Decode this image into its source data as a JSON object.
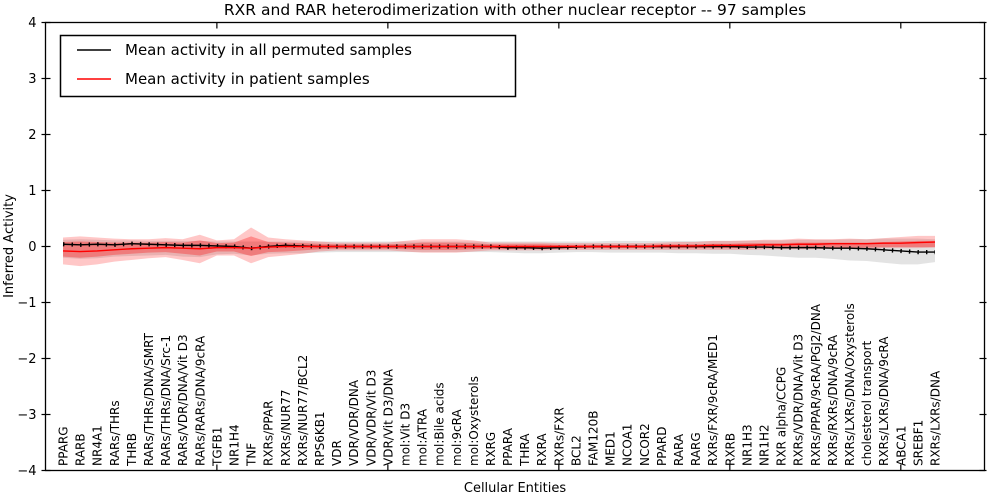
{
  "chart_data": {
    "type": "line",
    "title": "RXR and RAR heterodimerization with other nuclear receptor -- 97 samples",
    "xlabel": "Cellular Entities",
    "ylabel": "Inferred Activity",
    "ylim": [
      -4,
      4
    ],
    "yticks": [
      -4,
      -3,
      -2,
      -1,
      0,
      1,
      2,
      3,
      4
    ],
    "x_major_tick_positions": [
      10,
      20,
      30,
      40,
      50
    ],
    "legend_position": "upper left",
    "grid": false,
    "categories": [
      "PPARG",
      "RARB",
      "NR4A1",
      "RARs/THRs",
      "THRB",
      "RARs/THRs/DNA/SMRT",
      "RARs/THRs/DNA/Src-1",
      "RARs/VDR/DNA/Vit D3",
      "RARs/RARs/DNA/9cRA",
      "TGFB1",
      "NR1H4",
      "TNF",
      "RXRs/PPAR",
      "RXRs/NUR77",
      "RXRs/NUR77/BCL2",
      "RPS6KB1",
      "VDR",
      "VDR/VDR/DNA",
      "VDR/VDR/Vit D3",
      "VDR/Vit D3/DNA",
      "mol:Vit D3",
      "mol:ATRA",
      "mol:Bile acids",
      "mol:9cRA",
      "mol:Oxysterols",
      "RXRG",
      "PPARA",
      "THRA",
      "RXRA",
      "RXRs/FXR",
      "BCL2",
      "FAM120B",
      "MED1",
      "NCOA1",
      "NCOR2",
      "PPARD",
      "RARA",
      "RARG",
      "RXRs/FXR/9cRA/MED1",
      "RXRB",
      "NR1H3",
      "NR1H2",
      "RXR alpha/CCPG",
      "RXRs/VDR/DNA/Vit D3",
      "RXRs/PPAR/9cRA/PGJ2/DNA",
      "RXRs/RXRs/DNA/9cRA",
      "RXRs/LXRs/DNA/Oxysterols",
      "cholesterol transport",
      "RXRs/LXRs/DNA/9cRA",
      "ABCA1",
      "SREBF1",
      "RXRs/LXRs/DNA"
    ],
    "series": [
      {
        "name": "Mean activity in all permuted samples",
        "color": "#000000",
        "markers": "tick",
        "values": [
          0.04,
          0.03,
          0.04,
          0.03,
          0.05,
          0.04,
          0.03,
          0.02,
          0.02,
          0.01,
          0.0,
          -0.03,
          0.0,
          0.02,
          0.01,
          0.0,
          0.0,
          0.0,
          0.0,
          0.0,
          0.0,
          0.0,
          0.0,
          0.0,
          0.0,
          0.0,
          -0.02,
          -0.02,
          -0.03,
          -0.02,
          -0.01,
          0.0,
          0.0,
          0.0,
          0.0,
          0.0,
          0.0,
          0.0,
          0.0,
          0.0,
          -0.01,
          -0.01,
          -0.02,
          -0.02,
          -0.02,
          -0.03,
          -0.03,
          -0.04,
          -0.06,
          -0.08,
          -0.1,
          -0.1
        ]
      },
      {
        "name": "Mean activity in patient samples",
        "color": "#ff0000",
        "markers": "none",
        "values": [
          -0.08,
          -0.09,
          -0.08,
          -0.06,
          -0.04,
          -0.03,
          -0.02,
          -0.03,
          -0.04,
          -0.02,
          -0.02,
          -0.03,
          -0.01,
          0.0,
          0.0,
          0.0,
          0.0,
          0.0,
          0.0,
          0.0,
          0.0,
          0.0,
          0.0,
          0.0,
          0.0,
          0.0,
          0.0,
          0.0,
          0.0,
          0.0,
          0.0,
          0.0,
          0.0,
          0.0,
          0.0,
          0.01,
          0.01,
          0.01,
          0.02,
          0.02,
          0.02,
          0.03,
          0.03,
          0.04,
          0.04,
          0.05,
          0.05,
          0.05,
          0.06,
          0.06,
          0.07,
          0.08
        ]
      }
    ],
    "bands": [
      {
        "name": "permuted-samples-range",
        "color": "#000000",
        "opacity": 0.11,
        "upper": [
          0.12,
          0.13,
          0.12,
          0.11,
          0.11,
          0.1,
          0.1,
          0.1,
          0.1,
          0.09,
          0.09,
          0.09,
          0.09,
          0.09,
          0.09,
          0.09,
          0.09,
          0.09,
          0.09,
          0.09,
          0.09,
          0.09,
          0.09,
          0.09,
          0.09,
          0.09,
          0.09,
          0.09,
          0.09,
          0.09,
          0.09,
          0.09,
          0.1,
          0.1,
          0.1,
          0.1,
          0.1,
          0.1,
          0.1,
          0.1,
          0.1,
          0.11,
          0.11,
          0.12,
          0.12,
          0.12,
          0.13,
          0.13,
          0.14,
          0.14,
          0.14,
          0.13
        ],
        "lower": [
          -0.2,
          -0.22,
          -0.21,
          -0.18,
          -0.17,
          -0.16,
          -0.15,
          -0.18,
          -0.19,
          -0.14,
          -0.13,
          -0.16,
          -0.13,
          -0.12,
          -0.12,
          -0.11,
          -0.1,
          -0.1,
          -0.1,
          -0.1,
          -0.1,
          -0.1,
          -0.1,
          -0.1,
          -0.1,
          -0.1,
          -0.11,
          -0.12,
          -0.12,
          -0.11,
          -0.1,
          -0.1,
          -0.11,
          -0.11,
          -0.11,
          -0.11,
          -0.12,
          -0.12,
          -0.13,
          -0.13,
          -0.15,
          -0.16,
          -0.18,
          -0.2,
          -0.2,
          -0.22,
          -0.25,
          -0.26,
          -0.29,
          -0.32,
          -0.32,
          -0.28
        ]
      },
      {
        "name": "patient-samples-outer-range",
        "color": "#ff0000",
        "opacity": 0.22,
        "upper": [
          0.16,
          0.18,
          0.16,
          0.14,
          0.13,
          0.13,
          0.15,
          0.13,
          0.21,
          0.11,
          0.13,
          0.34,
          0.16,
          0.13,
          0.11,
          0.09,
          0.07,
          0.07,
          0.07,
          0.07,
          0.1,
          0.13,
          0.13,
          0.13,
          0.11,
          0.07,
          0.07,
          0.07,
          0.07,
          0.06,
          0.06,
          0.06,
          0.06,
          0.06,
          0.06,
          0.07,
          0.08,
          0.08,
          0.1,
          0.1,
          0.11,
          0.12,
          0.12,
          0.14,
          0.13,
          0.13,
          0.14,
          0.13,
          0.15,
          0.17,
          0.19,
          0.19
        ],
        "lower": [
          -0.32,
          -0.35,
          -0.32,
          -0.27,
          -0.24,
          -0.21,
          -0.19,
          -0.24,
          -0.3,
          -0.16,
          -0.16,
          -0.3,
          -0.19,
          -0.16,
          -0.13,
          -0.09,
          -0.07,
          -0.07,
          -0.07,
          -0.07,
          -0.09,
          -0.11,
          -0.11,
          -0.11,
          -0.09,
          -0.07,
          -0.07,
          -0.07,
          -0.07,
          -0.06,
          -0.06,
          -0.06,
          -0.06,
          -0.06,
          -0.06,
          -0.06,
          -0.06,
          -0.06,
          -0.06,
          -0.06,
          -0.06,
          -0.05,
          -0.05,
          -0.05,
          -0.05,
          -0.04,
          -0.04,
          -0.04,
          -0.03,
          -0.03,
          -0.03,
          -0.02
        ]
      },
      {
        "name": "patient-samples-inner-range",
        "color": "#ff0000",
        "opacity": 0.3,
        "upper": [
          0.08,
          0.09,
          0.08,
          0.07,
          0.07,
          0.07,
          0.08,
          0.07,
          0.11,
          0.06,
          0.07,
          0.18,
          0.08,
          0.07,
          0.06,
          0.05,
          0.04,
          0.04,
          0.04,
          0.04,
          0.05,
          0.07,
          0.07,
          0.07,
          0.06,
          0.04,
          0.04,
          0.04,
          0.04,
          0.03,
          0.03,
          0.03,
          0.03,
          0.03,
          0.03,
          0.04,
          0.04,
          0.04,
          0.05,
          0.05,
          0.06,
          0.06,
          0.06,
          0.07,
          0.07,
          0.07,
          0.07,
          0.07,
          0.08,
          0.09,
          0.1,
          0.1
        ],
        "lower": [
          -0.18,
          -0.2,
          -0.18,
          -0.15,
          -0.13,
          -0.11,
          -0.1,
          -0.13,
          -0.16,
          -0.09,
          -0.09,
          -0.17,
          -0.1,
          -0.09,
          -0.07,
          -0.05,
          -0.04,
          -0.04,
          -0.04,
          -0.04,
          -0.05,
          -0.06,
          -0.06,
          -0.06,
          -0.05,
          -0.04,
          -0.04,
          -0.04,
          -0.04,
          -0.03,
          -0.03,
          -0.03,
          -0.03,
          -0.03,
          -0.03,
          -0.03,
          -0.03,
          -0.03,
          -0.03,
          -0.03,
          -0.03,
          -0.02,
          -0.02,
          -0.02,
          -0.02,
          -0.02,
          -0.02,
          -0.02,
          -0.01,
          -0.01,
          -0.01,
          -0.01
        ]
      }
    ]
  }
}
